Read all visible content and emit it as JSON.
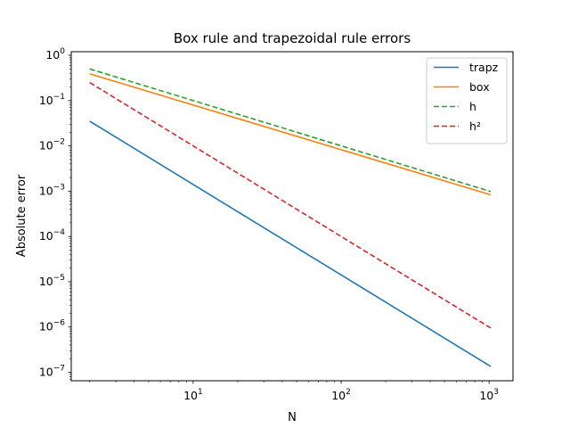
{
  "chart_data": {
    "type": "line",
    "title": "Box rule and trapezoidal rule errors",
    "xlabel": "N",
    "ylabel": "Absolute error",
    "xscale": "log",
    "yscale": "log",
    "xlim": [
      1.5,
      1450
    ],
    "ylim": [
      6.5e-08,
      1.2
    ],
    "x_ticks": [
      {
        "value": 10,
        "base": "10",
        "exp": "1"
      },
      {
        "value": 100,
        "base": "10",
        "exp": "2"
      },
      {
        "value": 1000,
        "base": "10",
        "exp": "3"
      }
    ],
    "y_ticks": [
      {
        "value": 1e-07,
        "base": "10",
        "exp": "−7"
      },
      {
        "value": 1e-06,
        "base": "10",
        "exp": "−6"
      },
      {
        "value": 1e-05,
        "base": "10",
        "exp": "−5"
      },
      {
        "value": 0.0001,
        "base": "10",
        "exp": "−4"
      },
      {
        "value": 0.001,
        "base": "10",
        "exp": "−3"
      },
      {
        "value": 0.01,
        "base": "10",
        "exp": "−2"
      },
      {
        "value": 0.1,
        "base": "10",
        "exp": "−1"
      },
      {
        "value": 1,
        "base": "10",
        "exp": "0"
      }
    ],
    "grid": false,
    "legend_position": "top-right",
    "series": [
      {
        "name": "trapz",
        "color": "#1f77b4",
        "style": "solid",
        "x": [
          2,
          1024
        ],
        "y": [
          0.035,
          1.35e-07
        ]
      },
      {
        "name": "box",
        "color": "#ff7f0e",
        "style": "solid",
        "x": [
          2,
          1024
        ],
        "y": [
          0.39,
          0.00083
        ]
      },
      {
        "name": "h",
        "color": "#2ca02c",
        "style": "dashed",
        "x": [
          2,
          1024
        ],
        "y": [
          0.5,
          0.00098
        ]
      },
      {
        "name": "h²",
        "color": "#d62728",
        "style": "dashed",
        "x": [
          2,
          1024
        ],
        "y": [
          0.25,
          9.5e-07
        ]
      }
    ]
  }
}
